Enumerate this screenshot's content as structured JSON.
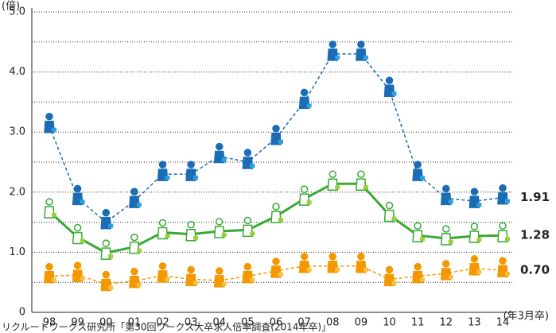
{
  "chart_data": {
    "type": "line",
    "y_unit": "(倍)",
    "x_note": "(年3月卒)",
    "source": "リクルートワークス研究所「第30回ワークス大卒求人倍率調査(2014年卒)」",
    "categories": [
      "98",
      "99",
      "00",
      "01",
      "02",
      "03",
      "04",
      "05",
      "06",
      "07",
      "08",
      "09",
      "10",
      "11",
      "12",
      "13",
      "14"
    ],
    "ylim": [
      0,
      5
    ],
    "yticks": [
      0,
      {
        "value": 1,
        "label": "1.0"
      },
      {
        "value": 2,
        "label": "2.0"
      },
      {
        "value": 3,
        "label": "3.0"
      },
      {
        "value": 4,
        "label": "4.0"
      },
      {
        "value": 5,
        "label": "5.0"
      }
    ],
    "grid": true,
    "series": [
      {
        "color": "#1b6cb4",
        "dashed": true,
        "values": [
          3.1,
          1.9,
          1.5,
          1.85,
          2.3,
          2.3,
          2.6,
          2.5,
          2.9,
          3.5,
          4.3,
          4.3,
          3.7,
          2.3,
          1.9,
          1.85,
          1.91
        ],
        "value_labels": [
          null,
          null,
          null,
          null,
          null,
          null,
          null,
          null,
          null,
          null,
          null,
          null,
          null,
          null,
          null,
          null,
          "1.91"
        ]
      },
      {
        "color": "#3aaa35",
        "dashed": false,
        "values": [
          1.68,
          1.25,
          0.99,
          1.09,
          1.33,
          1.3,
          1.35,
          1.37,
          1.6,
          1.89,
          2.14,
          2.14,
          1.62,
          1.28,
          1.23,
          1.27,
          1.28
        ],
        "value_labels": [
          null,
          null,
          null,
          null,
          null,
          null,
          null,
          null,
          null,
          null,
          null,
          null,
          null,
          null,
          null,
          null,
          "1.28"
        ]
      },
      {
        "color": "#f39800",
        "dashed": true,
        "values": [
          0.6,
          0.62,
          0.47,
          0.52,
          0.61,
          0.55,
          0.53,
          0.6,
          0.69,
          0.77,
          0.77,
          0.77,
          0.55,
          0.6,
          0.65,
          0.73,
          0.7
        ],
        "value_labels": [
          null,
          null,
          null,
          null,
          null,
          null,
          null,
          null,
          null,
          null,
          null,
          null,
          null,
          null,
          null,
          null,
          "0.70"
        ]
      }
    ]
  }
}
